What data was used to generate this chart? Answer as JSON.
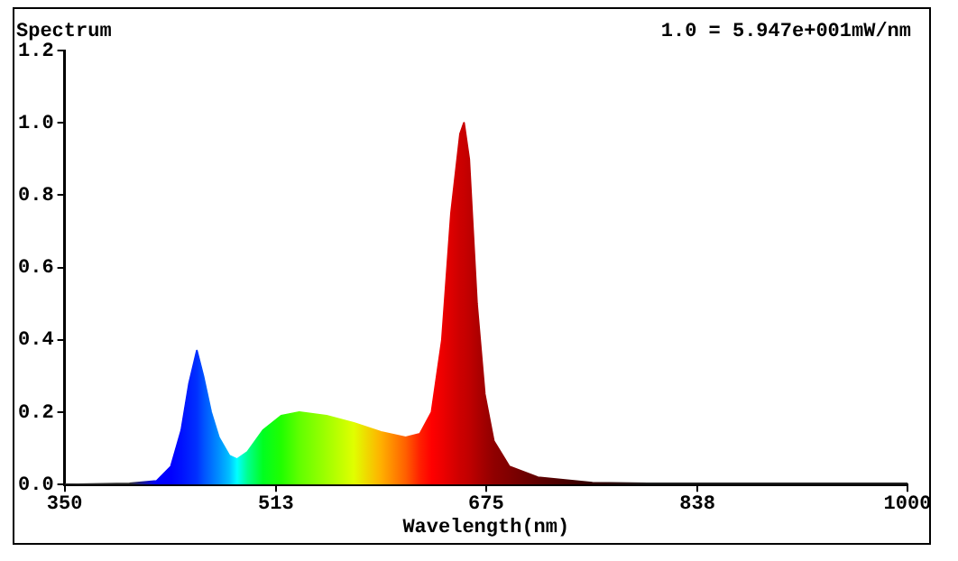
{
  "chart_data": {
    "type": "area",
    "title": "Spectrum",
    "xlabel": "Wavelength(nm)",
    "annotations": [
      "1.0 = 5.947e+001mW/nm"
    ],
    "x": [
      350,
      400,
      421,
      432,
      440,
      446,
      452,
      457,
      463,
      469,
      477,
      483,
      491,
      503,
      517,
      531,
      552,
      573,
      594,
      613,
      624,
      633,
      641,
      648,
      655,
      658,
      662,
      668,
      674,
      681,
      693,
      715,
      757,
      800,
      1000
    ],
    "series": [
      {
        "values": [
          0,
          0.003,
          0.01,
          0.05,
          0.15,
          0.28,
          0.37,
          0.3,
          0.2,
          0.13,
          0.08,
          0.07,
          0.09,
          0.15,
          0.19,
          0.2,
          0.19,
          0.17,
          0.145,
          0.13,
          0.14,
          0.2,
          0.4,
          0.75,
          0.97,
          1.0,
          0.9,
          0.5,
          0.25,
          0.12,
          0.05,
          0.02,
          0.005,
          0.003,
          0.003
        ],
        "colors": [
          "#303030",
          "#303030",
          "#0000ff",
          "#0000ff",
          "#0010ff",
          "#0020ff",
          "#0030ff",
          "#0050ff",
          "#0070ff",
          "#0090ff",
          "#00c0ff",
          "#00ffff",
          "#00ff90",
          "#00ff20",
          "#20ff00",
          "#60ff00",
          "#a0ff00",
          "#e0ff00",
          "#ffb000",
          "#ff6000",
          "#ff2000",
          "#ff0000",
          "#ee0000",
          "#dd0000",
          "#cc0000",
          "#c80000",
          "#c00000",
          "#b00000",
          "#a00000",
          "#900000",
          "#800000",
          "#600000",
          "#300000",
          "#202020",
          "#202020"
        ]
      }
    ],
    "xlim": [
      350,
      1000
    ],
    "xticks": [
      350,
      513,
      675,
      838,
      1000
    ],
    "ylim": [
      0,
      1.2
    ],
    "yticks": [
      {
        "value": 0,
        "label": "0.0"
      },
      {
        "value": 0.2,
        "label": "0.2"
      },
      {
        "value": 0.4,
        "label": "0.4"
      },
      {
        "value": 0.6,
        "label": "0.6"
      },
      {
        "value": 0.8,
        "label": "0.8"
      },
      {
        "value": 1.0,
        "label": "1.0"
      },
      {
        "value": 1.2,
        "label": "1.2"
      }
    ],
    "grid": false,
    "legend": false,
    "marker": "none"
  }
}
